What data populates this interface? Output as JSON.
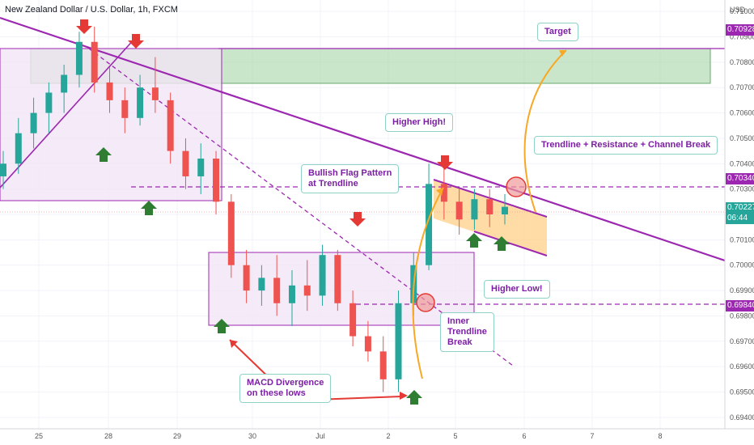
{
  "header": {
    "title": "New Zealand Dollar / U.S. Dollar, 1h, FXCM"
  },
  "currency_badge": "USD",
  "colors": {
    "up": "#26a69a",
    "down": "#ef5350",
    "trendline": "#9c27b0",
    "resistance_zone": "#a5d6a7",
    "box": "#f3e5f5",
    "flag": "#ffcc80",
    "arrow_up": "#2e7d32",
    "arrow_down": "#e53935",
    "callout_text": "#7b1fa2",
    "target_curve": "#f9a825"
  },
  "price_labels": [
    {
      "text": "0.70928",
      "value": 0.70928,
      "color": "#9c27b0"
    },
    {
      "text": "0.70340",
      "value": 0.7034,
      "color": "#9c27b0"
    },
    {
      "text": "0.70227",
      "value": 0.70227,
      "color": "#26a69a"
    },
    {
      "text": "06:44",
      "value": 0.70185,
      "color": "#26a69a"
    },
    {
      "text": "0.69840",
      "value": 0.6984,
      "color": "#9c27b0"
    }
  ],
  "annotations": {
    "target": "Target",
    "higher_high": "Higher High!",
    "break": "Trendline + Resistance + Channel Break",
    "flag_line1": "Bullish Flag Pattern",
    "flag_line2": "at Trendline",
    "higher_low": "Higher Low!",
    "inner_1": "Inner",
    "inner_2": "Trendline",
    "inner_3": "Break",
    "macd_1": "MACD Divergence",
    "macd_2": "on these lows"
  },
  "chart_data": {
    "type": "candlestick",
    "title": "New Zealand Dollar / U.S. Dollar, 1h, FXCM",
    "y_ticks": [
      0.71,
      0.709,
      0.708,
      0.707,
      0.706,
      0.705,
      0.704,
      0.703,
      0.702,
      0.701,
      0.7,
      0.699,
      0.698,
      0.697,
      0.696,
      0.695,
      0.694
    ],
    "y_tick_labels": [
      "0.71000",
      "0.70900",
      "0.70800",
      "0.70700",
      "0.70600",
      "0.70500",
      "0.70400",
      "0.70300",
      "0.70200",
      "0.70100",
      "0.70000",
      "0.69900",
      "0.69800",
      "0.69700",
      "0.69600",
      "0.69500",
      "0.69400"
    ],
    "ylim": [
      0.69355,
      0.71045
    ],
    "x_ticks": [
      "25",
      "28",
      "29",
      "30",
      "Jul",
      "2",
      "5",
      "6",
      "7",
      "8"
    ],
    "xlim": [
      0,
      900
    ],
    "key_levels": [
      0.70928,
      0.7034,
      0.6984
    ],
    "last_price": 0.70227,
    "candles_ohlc_approx": [
      [
        0.7035,
        0.7045,
        0.703,
        0.704
      ],
      [
        0.704,
        0.7058,
        0.7036,
        0.7052
      ],
      [
        0.7052,
        0.7066,
        0.7046,
        0.706
      ],
      [
        0.706,
        0.7072,
        0.7052,
        0.7068
      ],
      [
        0.7068,
        0.7079,
        0.706,
        0.7075
      ],
      [
        0.7075,
        0.7092,
        0.707,
        0.7088
      ],
      [
        0.7088,
        0.7094,
        0.7068,
        0.7072
      ],
      [
        0.7072,
        0.7078,
        0.706,
        0.7065
      ],
      [
        0.7065,
        0.707,
        0.7052,
        0.7058
      ],
      [
        0.7058,
        0.7075,
        0.7055,
        0.707
      ],
      [
        0.707,
        0.7082,
        0.706,
        0.7065
      ],
      [
        0.7065,
        0.7068,
        0.704,
        0.7045
      ],
      [
        0.7045,
        0.705,
        0.703,
        0.7035
      ],
      [
        0.7035,
        0.7048,
        0.7028,
        0.7042
      ],
      [
        0.7042,
        0.7045,
        0.702,
        0.7025
      ],
      [
        0.7025,
        0.7028,
        0.6995,
        0.7
      ],
      [
        0.7,
        0.7006,
        0.6985,
        0.699
      ],
      [
        0.699,
        0.7,
        0.6984,
        0.6995
      ],
      [
        0.6995,
        0.7004,
        0.698,
        0.6985
      ],
      [
        0.6985,
        0.6998,
        0.6976,
        0.6992
      ],
      [
        0.6992,
        0.7002,
        0.6982,
        0.6988
      ],
      [
        0.6988,
        0.7008,
        0.6984,
        0.7004
      ],
      [
        0.7004,
        0.7006,
        0.6982,
        0.6985
      ],
      [
        0.6985,
        0.699,
        0.6968,
        0.6972
      ],
      [
        0.6972,
        0.6978,
        0.6962,
        0.6966
      ],
      [
        0.6966,
        0.6972,
        0.695,
        0.6955
      ],
      [
        0.6955,
        0.699,
        0.695,
        0.6985
      ],
      [
        0.6985,
        0.7005,
        0.698,
        0.7
      ],
      [
        0.7,
        0.704,
        0.6998,
        0.7032
      ],
      [
        0.7032,
        0.7038,
        0.7018,
        0.7025
      ],
      [
        0.7025,
        0.703,
        0.7012,
        0.7018
      ],
      [
        0.7018,
        0.703,
        0.7014,
        0.7026
      ],
      [
        0.7026,
        0.703,
        0.7015,
        0.702
      ],
      [
        0.702,
        0.7028,
        0.7016,
        0.7023
      ]
    ]
  }
}
